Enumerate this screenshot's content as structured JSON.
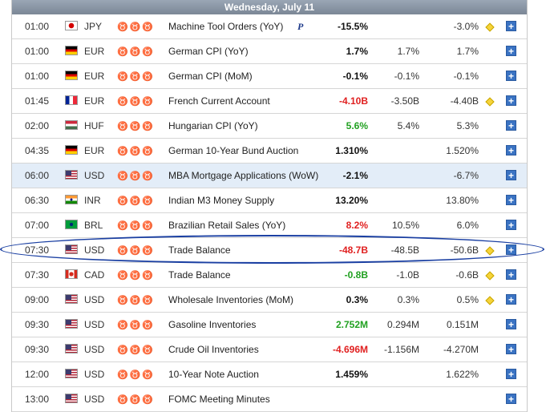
{
  "header": {
    "date": "Wednesday, July 11"
  },
  "colors": {
    "negative": "#e02020",
    "positive": "#21a121",
    "neutral": "#111111",
    "bull_on": "#c0141b"
  },
  "rows": [
    {
      "time": "01:00",
      "flag": "flag-jp",
      "currency": "JPY",
      "importance": 1,
      "event": "Machine Tool Orders (YoY)",
      "prelim": "P",
      "actual": "-15.5%",
      "actual_tone": "neu",
      "forecast": "",
      "previous": "-3.0%",
      "revised": true
    },
    {
      "time": "01:00",
      "flag": "flag-de",
      "currency": "EUR",
      "importance": 2,
      "event": "German CPI (YoY)",
      "prelim": "",
      "actual": "1.7%",
      "actual_tone": "neu",
      "forecast": "1.7%",
      "previous": "1.7%",
      "revised": false
    },
    {
      "time": "01:00",
      "flag": "flag-de",
      "currency": "EUR",
      "importance": 2,
      "event": "German CPI (MoM)",
      "prelim": "",
      "actual": "-0.1%",
      "actual_tone": "neu",
      "forecast": "-0.1%",
      "previous": "-0.1%",
      "revised": false
    },
    {
      "time": "01:45",
      "flag": "flag-fr",
      "currency": "EUR",
      "importance": 1,
      "event": "French Current Account",
      "prelim": "",
      "actual": "-4.10B",
      "actual_tone": "neg",
      "forecast": "-3.50B",
      "previous": "-4.40B",
      "revised": true
    },
    {
      "time": "02:00",
      "flag": "flag-hu",
      "currency": "HUF",
      "importance": 2,
      "event": "Hungarian CPI (YoY)",
      "prelim": "",
      "actual": "5.6%",
      "actual_tone": "pos",
      "forecast": "5.4%",
      "previous": "5.3%",
      "revised": false
    },
    {
      "time": "04:35",
      "flag": "flag-de",
      "currency": "EUR",
      "importance": 2,
      "event": "German 10-Year Bund Auction",
      "prelim": "",
      "actual": "1.310%",
      "actual_tone": "neu",
      "forecast": "",
      "previous": "1.520%",
      "revised": false
    },
    {
      "time": "06:00",
      "flag": "flag-us",
      "currency": "USD",
      "importance": 1,
      "event": "MBA Mortgage Applications (WoW)",
      "prelim": "",
      "actual": "-2.1%",
      "actual_tone": "neu",
      "forecast": "",
      "previous": "-6.7%",
      "revised": false,
      "highlight": true
    },
    {
      "time": "06:30",
      "flag": "flag-in",
      "currency": "INR",
      "importance": 1,
      "event": "Indian M3 Money Supply",
      "prelim": "",
      "actual": "13.20%",
      "actual_tone": "neu",
      "forecast": "",
      "previous": "13.80%",
      "revised": false
    },
    {
      "time": "07:00",
      "flag": "flag-br",
      "currency": "BRL",
      "importance": 2,
      "event": "Brazilian Retail Sales (YoY)",
      "prelim": "",
      "actual": "8.2%",
      "actual_tone": "neg",
      "forecast": "10.5%",
      "previous": "6.0%",
      "revised": false
    },
    {
      "time": "07:30",
      "flag": "flag-us",
      "currency": "USD",
      "importance": 3,
      "event": "Trade Balance",
      "prelim": "",
      "actual": "-48.7B",
      "actual_tone": "neg",
      "forecast": "-48.5B",
      "previous": "-50.6B",
      "revised": true
    },
    {
      "time": "07:30",
      "flag": "flag-ca",
      "currency": "CAD",
      "importance": 3,
      "event": "Trade Balance",
      "prelim": "",
      "actual": "-0.8B",
      "actual_tone": "pos",
      "forecast": "-1.0B",
      "previous": "-0.6B",
      "revised": true
    },
    {
      "time": "09:00",
      "flag": "flag-us",
      "currency": "USD",
      "importance": 2,
      "event": "Wholesale Inventories (MoM)",
      "prelim": "",
      "actual": "0.3%",
      "actual_tone": "neu",
      "forecast": "0.3%",
      "previous": "0.5%",
      "revised": true
    },
    {
      "time": "09:30",
      "flag": "flag-us",
      "currency": "USD",
      "importance": 2,
      "event": "Gasoline Inventories",
      "prelim": "",
      "actual": "2.752M",
      "actual_tone": "pos",
      "forecast": "0.294M",
      "previous": "0.151M",
      "revised": false
    },
    {
      "time": "09:30",
      "flag": "flag-us",
      "currency": "USD",
      "importance": 2,
      "event": "Crude Oil Inventories",
      "prelim": "",
      "actual": "-4.696M",
      "actual_tone": "neg",
      "forecast": "-1.156M",
      "previous": "-4.270M",
      "revised": false
    },
    {
      "time": "12:00",
      "flag": "flag-us",
      "currency": "USD",
      "importance": 2,
      "event": "10-Year Note Auction",
      "prelim": "",
      "actual": "1.459%",
      "actual_tone": "neu",
      "forecast": "",
      "previous": "1.622%",
      "revised": false
    },
    {
      "time": "13:00",
      "flag": "flag-us",
      "currency": "USD",
      "importance": 3,
      "event": "FOMC Meeting Minutes",
      "prelim": "",
      "actual": "",
      "actual_tone": "neu",
      "forecast": "",
      "previous": "",
      "revised": false
    }
  ]
}
